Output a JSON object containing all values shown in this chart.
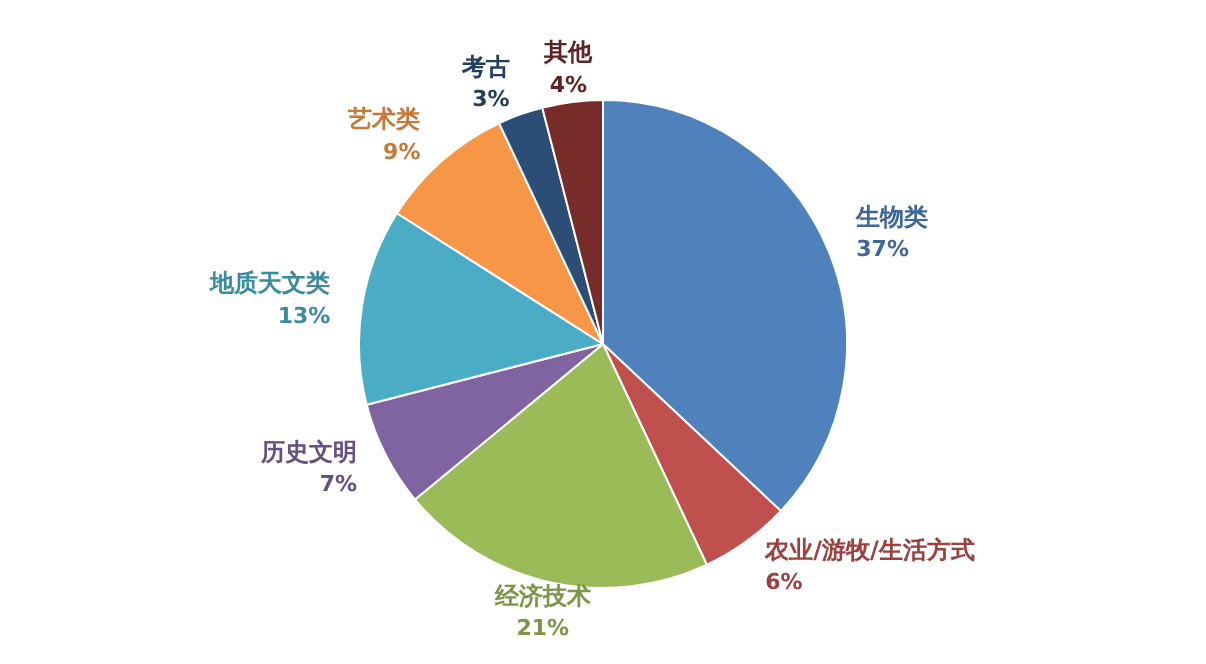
{
  "chart_data": {
    "type": "pie",
    "categories": [
      "生物类",
      "农业/游牧/生活方式",
      "经济技术",
      "历史文明",
      "地质天文类",
      "艺术类",
      "考古",
      "其他"
    ],
    "values": [
      37,
      6,
      21,
      7,
      13,
      9,
      3,
      4
    ],
    "value_labels": [
      "37%",
      "6%",
      "21%",
      "7%",
      "13%",
      "9%",
      "3%",
      "4%"
    ],
    "colors": [
      "#4f81bd",
      "#c0504d",
      "#9bbb59",
      "#8064a2",
      "#4bacc6",
      "#f79646",
      "#2c4d75",
      "#772c2a"
    ],
    "legend": false
  }
}
